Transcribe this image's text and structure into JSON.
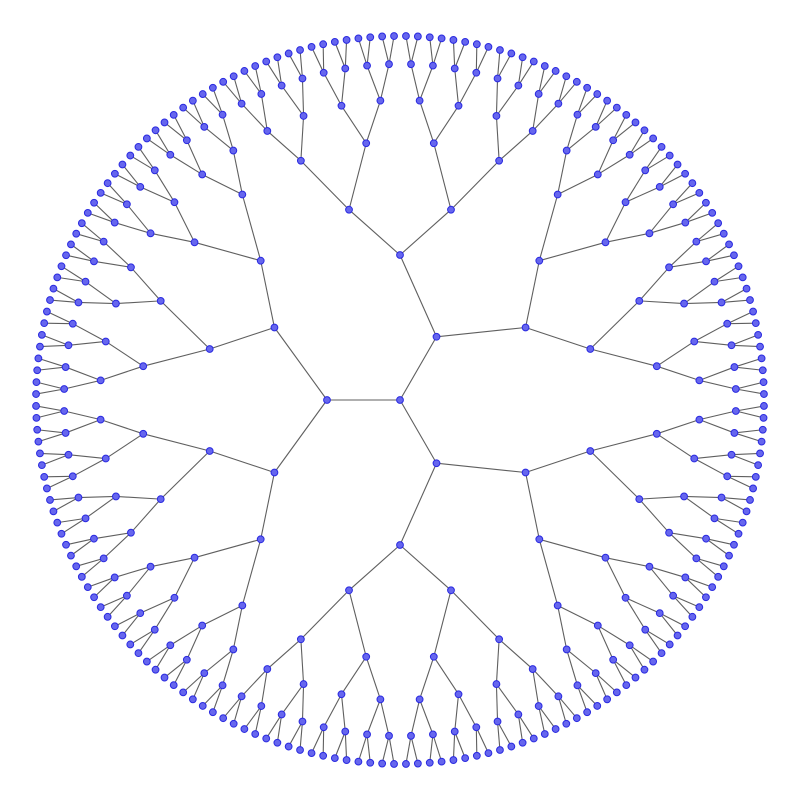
{
  "diagram": {
    "type": "radial-tree",
    "root_children": 3,
    "branching_factor": 2,
    "depth": 7,
    "leaf_count": 192,
    "node_fill": "#6666ee",
    "node_stroke": "#2a2ae0",
    "edge_color": "#5f5f5f",
    "background": "#ffffff"
  }
}
